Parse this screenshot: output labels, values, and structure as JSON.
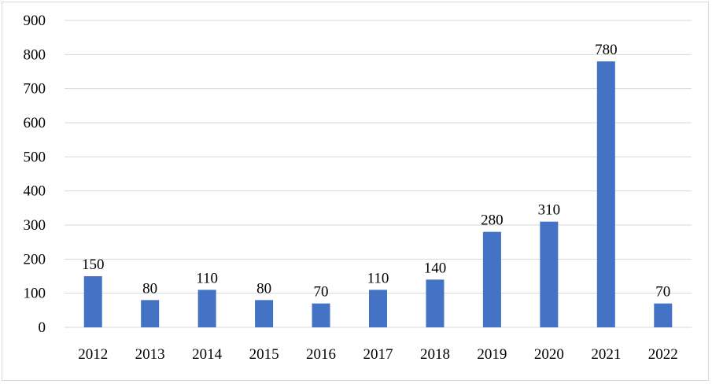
{
  "chart_data": {
    "type": "bar",
    "categories": [
      "2012",
      "2013",
      "2014",
      "2015",
      "2016",
      "2017",
      "2018",
      "2019",
      "2020",
      "2021",
      "2022"
    ],
    "values": [
      150,
      80,
      110,
      80,
      70,
      110,
      140,
      280,
      310,
      780,
      70
    ],
    "data_labels": [
      "150",
      "80",
      "110",
      "80",
      "70",
      "110",
      "140",
      "280",
      "310",
      "780",
      "70"
    ],
    "y_ticks": [
      "0",
      "100",
      "200",
      "300",
      "400",
      "500",
      "600",
      "700",
      "800",
      "900"
    ],
    "ylim": [
      0,
      900
    ],
    "title": "",
    "xlabel": "",
    "ylabel": "",
    "grid": true,
    "legend": "none",
    "bar_color": "#4472c4"
  }
}
